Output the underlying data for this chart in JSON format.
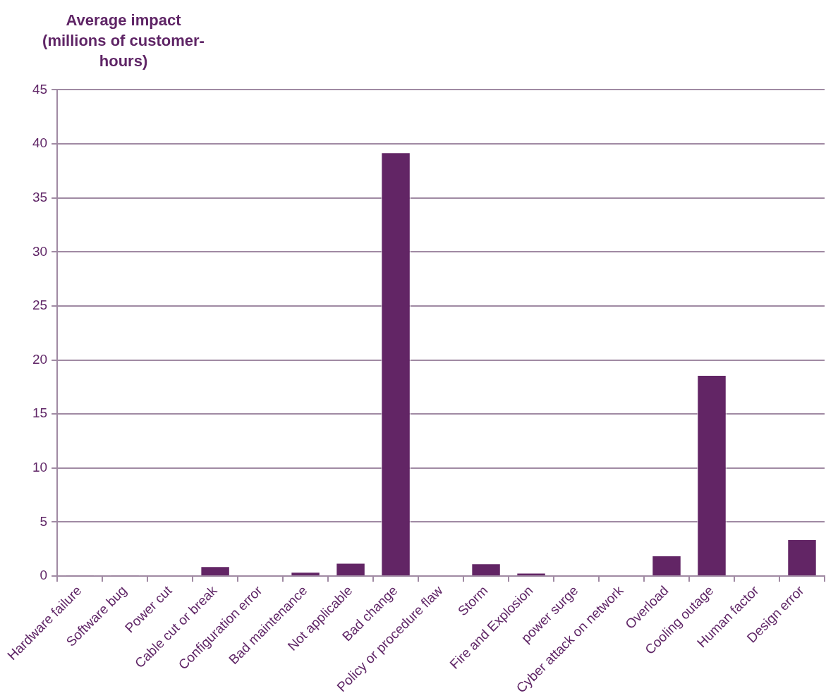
{
  "chart_data": {
    "type": "bar",
    "ylabel": "Average impact (millions of customer-hours)",
    "categories": [
      "Hardware failure",
      "Software bug",
      "Power cut",
      "Cable cut or break",
      "Configuration error",
      "Bad maintenance",
      "Not applicable",
      "Bad change",
      "Policy or procedure flaw",
      "Storm",
      "Fire and Explosion",
      "power surge",
      "Cyber attack on network",
      "Overload",
      "Cooling outage",
      "Human factor",
      "Design error"
    ],
    "values": [
      0.05,
      0.05,
      0,
      0.9,
      0,
      0.37,
      1.2,
      39.2,
      0,
      1.16,
      0.3,
      0,
      0,
      1.9,
      18.6,
      0,
      3.4
    ],
    "color": "#622565",
    "ylim": [
      0,
      45
    ],
    "yticks": [
      0,
      5,
      10,
      15,
      20,
      25,
      30,
      35,
      40,
      45
    ],
    "grid": "y",
    "legend": false
  }
}
